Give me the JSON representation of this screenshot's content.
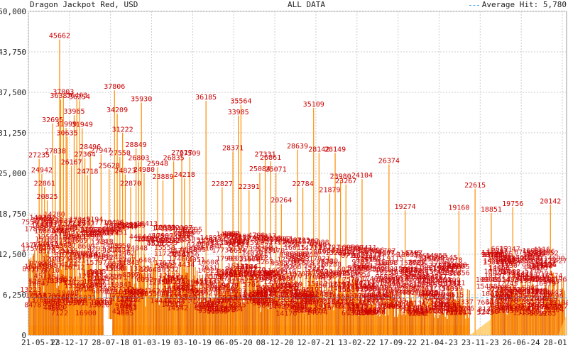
{
  "header": {
    "title": "Dragon Jackpot Red, USD",
    "subtitle": "ALL DATA",
    "legend_label": "Average Hit: 5,780"
  },
  "colors": {
    "bar": "#ff8c00",
    "bar_light": "#ffc14a",
    "label": "#cc0000",
    "average_line": "#4aa3df",
    "grid": "#cccccc",
    "baseline_fill": "#ffd27f"
  },
  "chart_data": {
    "type": "bar",
    "title": "Dragon Jackpot Red, USD",
    "subtitle": "ALL DATA",
    "ylim": [
      0,
      50000
    ],
    "y_ticks": [
      "0",
      "6,250",
      "12,500",
      "18,750",
      "25,000",
      "31,250",
      "37,500",
      "43,750",
      "50,000"
    ],
    "x_ticks": [
      "21-05-17",
      "23-12-17",
      "28-07-18",
      "01-03-19",
      "03-10-19",
      "06-05-20",
      "08-12-20",
      "12-07-21",
      "13-02-22",
      "17-09-22",
      "21-04-23",
      "23-11-23",
      "26-06-24",
      "28-01-25"
    ],
    "average": 5780,
    "grid": true,
    "legend": "top-right",
    "peaks": [
      {
        "x": 0.02,
        "value": 27235
      },
      {
        "x": 0.025,
        "value": 24942
      },
      {
        "x": 0.03,
        "value": 22861
      },
      {
        "x": 0.035,
        "value": 20825
      },
      {
        "x": 0.045,
        "value": 32695
      },
      {
        "x": 0.05,
        "value": 27838
      },
      {
        "x": 0.058,
        "value": 45662
      },
      {
        "x": 0.06,
        "value": 36387
      },
      {
        "x": 0.065,
        "value": 37003
      },
      {
        "x": 0.07,
        "value": 31999
      },
      {
        "x": 0.072,
        "value": 30635
      },
      {
        "x": 0.08,
        "value": 26167
      },
      {
        "x": 0.085,
        "value": 33965
      },
      {
        "x": 0.09,
        "value": 36463
      },
      {
        "x": 0.095,
        "value": 36254
      },
      {
        "x": 0.1,
        "value": 31949
      },
      {
        "x": 0.105,
        "value": 27364
      },
      {
        "x": 0.11,
        "value": 24718
      },
      {
        "x": 0.115,
        "value": 28496
      },
      {
        "x": 0.135,
        "value": 27947
      },
      {
        "x": 0.15,
        "value": 25628
      },
      {
        "x": 0.16,
        "value": 37806
      },
      {
        "x": 0.165,
        "value": 34209
      },
      {
        "x": 0.17,
        "value": 27550
      },
      {
        "x": 0.175,
        "value": 31222
      },
      {
        "x": 0.18,
        "value": 24823
      },
      {
        "x": 0.19,
        "value": 22870
      },
      {
        "x": 0.2,
        "value": 28849
      },
      {
        "x": 0.205,
        "value": 26803
      },
      {
        "x": 0.21,
        "value": 35930
      },
      {
        "x": 0.215,
        "value": 24980
      },
      {
        "x": 0.24,
        "value": 25948
      },
      {
        "x": 0.25,
        "value": 23889
      },
      {
        "x": 0.27,
        "value": 26835
      },
      {
        "x": 0.285,
        "value": 27617
      },
      {
        "x": 0.29,
        "value": 24218
      },
      {
        "x": 0.3,
        "value": 27509
      },
      {
        "x": 0.33,
        "value": 36185
      },
      {
        "x": 0.36,
        "value": 22827
      },
      {
        "x": 0.38,
        "value": 28371
      },
      {
        "x": 0.39,
        "value": 33905
      },
      {
        "x": 0.395,
        "value": 35564
      },
      {
        "x": 0.41,
        "value": 22391
      },
      {
        "x": 0.43,
        "value": 25084
      },
      {
        "x": 0.44,
        "value": 27331
      },
      {
        "x": 0.45,
        "value": 26861
      },
      {
        "x": 0.46,
        "value": 25071
      },
      {
        "x": 0.47,
        "value": 20264
      },
      {
        "x": 0.5,
        "value": 28639
      },
      {
        "x": 0.51,
        "value": 22784
      },
      {
        "x": 0.53,
        "value": 35109
      },
      {
        "x": 0.54,
        "value": 28142
      },
      {
        "x": 0.56,
        "value": 21879
      },
      {
        "x": 0.57,
        "value": 28149
      },
      {
        "x": 0.58,
        "value": 23980
      },
      {
        "x": 0.59,
        "value": 23267
      },
      {
        "x": 0.62,
        "value": 24104
      },
      {
        "x": 0.67,
        "value": 26374
      },
      {
        "x": 0.7,
        "value": 19274
      },
      {
        "x": 0.8,
        "value": 19160
      },
      {
        "x": 0.83,
        "value": 22615
      },
      {
        "x": 0.86,
        "value": 18851
      },
      {
        "x": 0.9,
        "value": 19756
      },
      {
        "x": 0.97,
        "value": 20142
      }
    ]
  }
}
